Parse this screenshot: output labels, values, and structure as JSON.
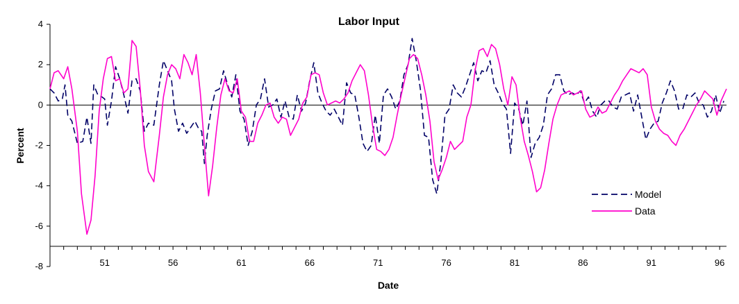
{
  "chart_data": {
    "type": "line",
    "title": "Labor Input",
    "xlabel": "Date",
    "ylabel": "Percent",
    "xlim": [
      47,
      96.5
    ],
    "ylim": [
      -8,
      4
    ],
    "x_ticks": [
      51,
      56,
      61,
      66,
      71,
      76,
      81,
      86,
      91,
      96
    ],
    "x_tick_labels": [
      "51",
      "56",
      "61",
      "66",
      "71",
      "76",
      "81",
      "86",
      "91",
      "96"
    ],
    "y_ticks": [
      4,
      2,
      0,
      -2,
      -4,
      -6,
      -8
    ],
    "y_tick_labels": [
      "4",
      "2",
      "0",
      "-2",
      "-4",
      "-6",
      "-8"
    ],
    "zero_line": true,
    "grid": false,
    "legend_position": "bottom-right",
    "series": [
      {
        "name": "Model",
        "color": "#000066",
        "dash": "dashed",
        "x": [
          47.0,
          47.3,
          47.6,
          47.9,
          48.1,
          48.3,
          48.6,
          49.0,
          49.4,
          49.7,
          50.0,
          50.2,
          50.5,
          50.8,
          51.0,
          51.2,
          51.5,
          51.8,
          52.1,
          52.4,
          52.7,
          53.0,
          53.3,
          53.6,
          53.9,
          54.2,
          54.6,
          55.0,
          55.3,
          55.6,
          55.9,
          56.1,
          56.4,
          56.7,
          57.0,
          57.3,
          57.6,
          57.9,
          58.1,
          58.3,
          58.5,
          58.8,
          59.1,
          59.4,
          59.7,
          60.0,
          60.3,
          60.6,
          60.9,
          61.2,
          61.5,
          61.8,
          62.1,
          62.4,
          62.7,
          63.0,
          63.3,
          63.6,
          63.9,
          64.2,
          64.5,
          64.8,
          65.1,
          65.4,
          65.7,
          66.0,
          66.3,
          66.6,
          66.9,
          67.2,
          67.5,
          67.8,
          68.1,
          68.4,
          68.7,
          69.0,
          69.3,
          69.6,
          69.9,
          70.2,
          70.5,
          70.8,
          71.1,
          71.4,
          71.7,
          72.0,
          72.3,
          72.6,
          72.9,
          73.2,
          73.5,
          73.8,
          74.1,
          74.4,
          74.7,
          75.0,
          75.3,
          75.6,
          75.9,
          76.2,
          76.5,
          76.8,
          77.1,
          77.4,
          77.7,
          78.0,
          78.3,
          78.6,
          78.9,
          79.2,
          79.5,
          79.8,
          80.1,
          80.4,
          80.7,
          81.0,
          81.3,
          81.6,
          81.9,
          82.2,
          82.5,
          82.8,
          83.1,
          83.4,
          83.7,
          84.0,
          84.3,
          84.6,
          84.9,
          85.2,
          85.5,
          85.8,
          86.1,
          86.4,
          86.7,
          87.0,
          87.3,
          87.6,
          87.9,
          88.2,
          88.5,
          88.8,
          89.1,
          89.4,
          89.7,
          90.0,
          90.3,
          90.6,
          90.9,
          91.2,
          91.5,
          91.8,
          92.1,
          92.4,
          92.7,
          93.0,
          93.3,
          93.6,
          93.9,
          94.2,
          94.5,
          94.8,
          95.1,
          95.4,
          95.7,
          96.0,
          96.3
        ],
        "y": [
          0.8,
          0.6,
          0.2,
          0.3,
          1.0,
          -0.5,
          -0.8,
          -1.9,
          -1.8,
          -0.6,
          -1.9,
          1.0,
          0.5,
          0.4,
          0.3,
          -1.0,
          0.2,
          1.9,
          1.3,
          0.5,
          -0.4,
          1.2,
          1.3,
          0.7,
          -1.3,
          -0.9,
          -1.0,
          1.0,
          2.2,
          1.7,
          1.2,
          -0.2,
          -1.3,
          -0.9,
          -1.4,
          -1.1,
          -0.8,
          -1.2,
          -1.3,
          -2.9,
          -1.5,
          -0.2,
          0.7,
          0.8,
          1.7,
          1.0,
          0.4,
          1.5,
          -0.3,
          -0.7,
          -2.0,
          -1.3,
          0.0,
          0.3,
          1.3,
          -0.1,
          0.0,
          0.3,
          -0.6,
          0.2,
          -0.6,
          -0.7,
          0.5,
          -0.3,
          0.1,
          1.2,
          2.1,
          0.6,
          0.1,
          -0.3,
          -0.5,
          -0.2,
          -0.6,
          -1.0,
          1.1,
          0.6,
          0.5,
          -0.6,
          -1.9,
          -2.3,
          -2.0,
          -0.5,
          -1.9,
          0.5,
          0.8,
          0.4,
          -0.2,
          0.2,
          1.5,
          2.0,
          3.3,
          2.2,
          0.8,
          -1.5,
          -1.6,
          -3.7,
          -4.4,
          -2.8,
          -0.5,
          -0.2,
          1.0,
          0.6,
          0.4,
          0.9,
          1.5,
          2.1,
          1.2,
          1.7,
          1.6,
          2.2,
          1.0,
          0.6,
          0.1,
          -0.2,
          -2.4,
          0.1,
          -0.2,
          -1.0,
          0.2,
          -2.6,
          -1.9,
          -1.6,
          -1.0,
          0.5,
          0.8,
          1.5,
          1.5,
          0.7,
          0.5,
          0.6,
          0.5,
          0.7,
          0.1,
          0.4,
          -0.3,
          -0.6,
          0.0,
          0.2,
          0.2,
          -0.1,
          -0.2,
          0.4,
          0.5,
          0.6,
          -0.3,
          0.5,
          -0.6,
          -1.7,
          -1.2,
          -0.9,
          -0.8,
          0.1,
          0.6,
          1.2,
          0.7,
          -0.2,
          -0.2,
          0.5,
          0.4,
          0.6,
          0.1,
          0.0,
          -0.6,
          -0.3,
          0.5,
          -0.4,
          0.2
        ]
      },
      {
        "name": "Data",
        "color": "#ff00cc",
        "dash": "solid",
        "x": [
          47.0,
          47.3,
          47.6,
          48.0,
          48.3,
          48.6,
          49.0,
          49.3,
          49.7,
          50.0,
          50.3,
          50.6,
          50.9,
          51.2,
          51.5,
          51.8,
          52.1,
          52.4,
          52.7,
          53.0,
          53.3,
          53.6,
          53.9,
          54.2,
          54.6,
          55.0,
          55.3,
          55.6,
          55.9,
          56.2,
          56.5,
          56.8,
          57.1,
          57.4,
          57.7,
          58.0,
          58.3,
          58.6,
          58.9,
          59.2,
          59.5,
          59.8,
          60.1,
          60.4,
          60.7,
          61.0,
          61.3,
          61.6,
          61.9,
          62.2,
          62.5,
          62.8,
          63.1,
          63.4,
          63.7,
          64.0,
          64.3,
          64.6,
          64.9,
          65.2,
          65.5,
          65.8,
          66.1,
          66.4,
          66.7,
          67.0,
          67.3,
          67.6,
          67.9,
          68.2,
          68.5,
          68.8,
          69.1,
          69.4,
          69.7,
          70.0,
          70.3,
          70.6,
          70.9,
          71.2,
          71.5,
          71.8,
          72.1,
          72.4,
          72.7,
          73.0,
          73.3,
          73.6,
          73.9,
          74.2,
          74.5,
          74.8,
          75.1,
          75.4,
          75.7,
          76.0,
          76.3,
          76.6,
          76.9,
          77.2,
          77.5,
          77.8,
          78.1,
          78.4,
          78.7,
          79.0,
          79.3,
          79.6,
          79.9,
          80.2,
          80.5,
          80.8,
          81.1,
          81.4,
          81.7,
          82.0,
          82.3,
          82.6,
          82.9,
          83.2,
          83.5,
          83.8,
          84.1,
          84.4,
          84.7,
          85.0,
          85.3,
          85.6,
          85.9,
          86.2,
          86.5,
          86.8,
          87.1,
          87.4,
          87.7,
          88.0,
          88.3,
          88.6,
          88.9,
          89.2,
          89.5,
          89.8,
          90.1,
          90.4,
          90.7,
          91.0,
          91.3,
          91.6,
          91.9,
          92.2,
          92.5,
          92.8,
          93.1,
          93.4,
          93.7,
          94.0,
          94.3,
          94.6,
          94.9,
          95.2,
          95.5,
          95.8,
          96.1,
          96.5
        ],
        "y": [
          0.8,
          1.6,
          1.7,
          1.3,
          1.9,
          0.8,
          -1.3,
          -4.4,
          -6.4,
          -5.7,
          -3.5,
          -0.3,
          1.3,
          2.3,
          2.4,
          1.2,
          1.3,
          0.6,
          0.8,
          3.2,
          2.9,
          0.8,
          -2.0,
          -3.3,
          -3.8,
          -1.5,
          0.4,
          1.5,
          2.0,
          1.8,
          1.3,
          2.5,
          2.1,
          1.5,
          2.5,
          0.6,
          -2.0,
          -4.5,
          -3.0,
          -1.1,
          0.5,
          1.3,
          0.7,
          0.6,
          1.3,
          -0.3,
          -0.6,
          -1.8,
          -1.8,
          -0.9,
          -0.5,
          0.0,
          0.1,
          -0.6,
          -0.9,
          -0.6,
          -0.7,
          -1.5,
          -1.1,
          -0.7,
          0.1,
          0.4,
          1.5,
          1.6,
          1.5,
          0.6,
          0.0,
          0.1,
          0.2,
          0.1,
          0.3,
          0.6,
          1.2,
          1.6,
          2.0,
          1.7,
          0.5,
          -1.0,
          -2.2,
          -2.3,
          -2.5,
          -2.2,
          -1.6,
          -0.5,
          0.5,
          1.4,
          2.3,
          2.5,
          2.3,
          1.5,
          0.5,
          -0.8,
          -2.8,
          -3.7,
          -3.2,
          -2.6,
          -1.8,
          -2.2,
          -2.0,
          -1.8,
          -0.6,
          0.0,
          1.7,
          2.7,
          2.8,
          2.4,
          3.0,
          2.8,
          2.0,
          0.8,
          0.0,
          1.4,
          1.0,
          -0.6,
          -1.8,
          -2.5,
          -3.3,
          -4.3,
          -4.1,
          -3.2,
          -1.9,
          -0.7,
          0.0,
          0.5,
          0.6,
          0.7,
          0.5,
          0.6,
          0.7,
          -0.2,
          -0.6,
          -0.5,
          -0.1,
          -0.4,
          -0.3,
          0.1,
          0.5,
          0.8,
          1.2,
          1.5,
          1.8,
          1.7,
          1.6,
          1.8,
          1.5,
          -0.1,
          -0.8,
          -1.2,
          -1.4,
          -1.5,
          -1.8,
          -2.0,
          -1.5,
          -1.2,
          -0.8,
          -0.4,
          0.0,
          0.3,
          0.7,
          0.5,
          0.3,
          -0.5,
          0.2,
          0.8
        ]
      }
    ]
  }
}
